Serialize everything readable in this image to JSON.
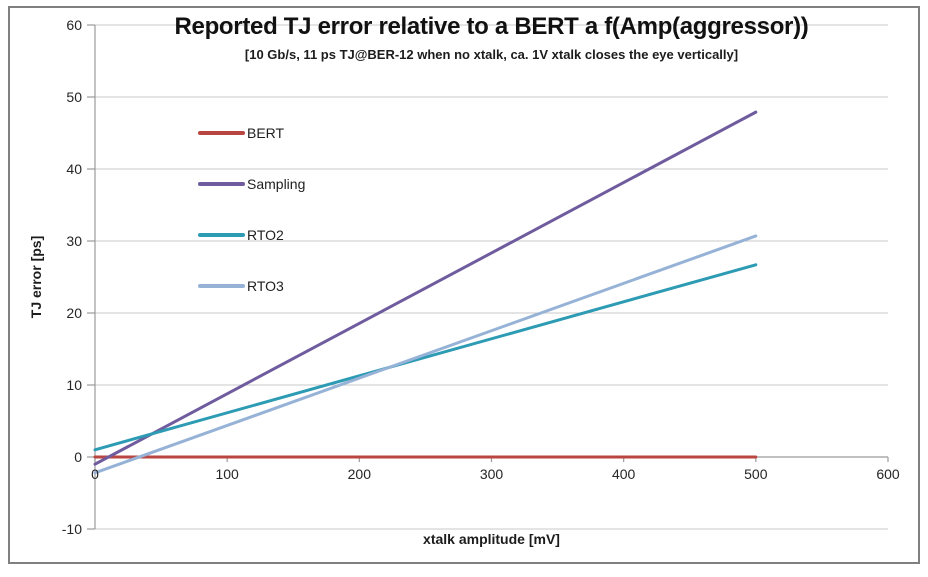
{
  "chart_data": {
    "type": "line",
    "title": "Reported TJ error relative to a BERT a f(Amp(aggressor))",
    "subtitle": "[10 Gb/s, 11 ps TJ@BER-12 when no xtalk, ca. 1V xtalk closes the eye vertically]",
    "xlabel": "xtalk amplitude [mV]",
    "ylabel": "TJ error [ps]",
    "xlim": [
      0,
      600
    ],
    "ylim": [
      -10,
      60
    ],
    "x_ticks": [
      0,
      100,
      200,
      300,
      400,
      500,
      600
    ],
    "y_ticks": [
      -10,
      0,
      10,
      20,
      30,
      40,
      50,
      60
    ],
    "grid": "horizontal",
    "legend_position": "inside-top-left",
    "series": [
      {
        "name": "BERT",
        "color": "#B94641",
        "x": [
          0,
          500
        ],
        "values": [
          0,
          0
        ]
      },
      {
        "name": "Sampling",
        "color": "#6F5C9E",
        "x": [
          0,
          500
        ],
        "values": [
          -1,
          47.9
        ]
      },
      {
        "name": "RTO2",
        "color": "#2D9BB4",
        "x": [
          0,
          500
        ],
        "values": [
          1,
          26.7
        ]
      },
      {
        "name": "RTO3",
        "color": "#96B3D7",
        "x": [
          0,
          500
        ],
        "values": [
          -2.2,
          30.7
        ]
      }
    ],
    "colors": {
      "gridline": "#C9C9C9",
      "axis": "#9B9B9B",
      "text": "#262626",
      "border": "#808080",
      "background": "#FFFFFF"
    }
  }
}
